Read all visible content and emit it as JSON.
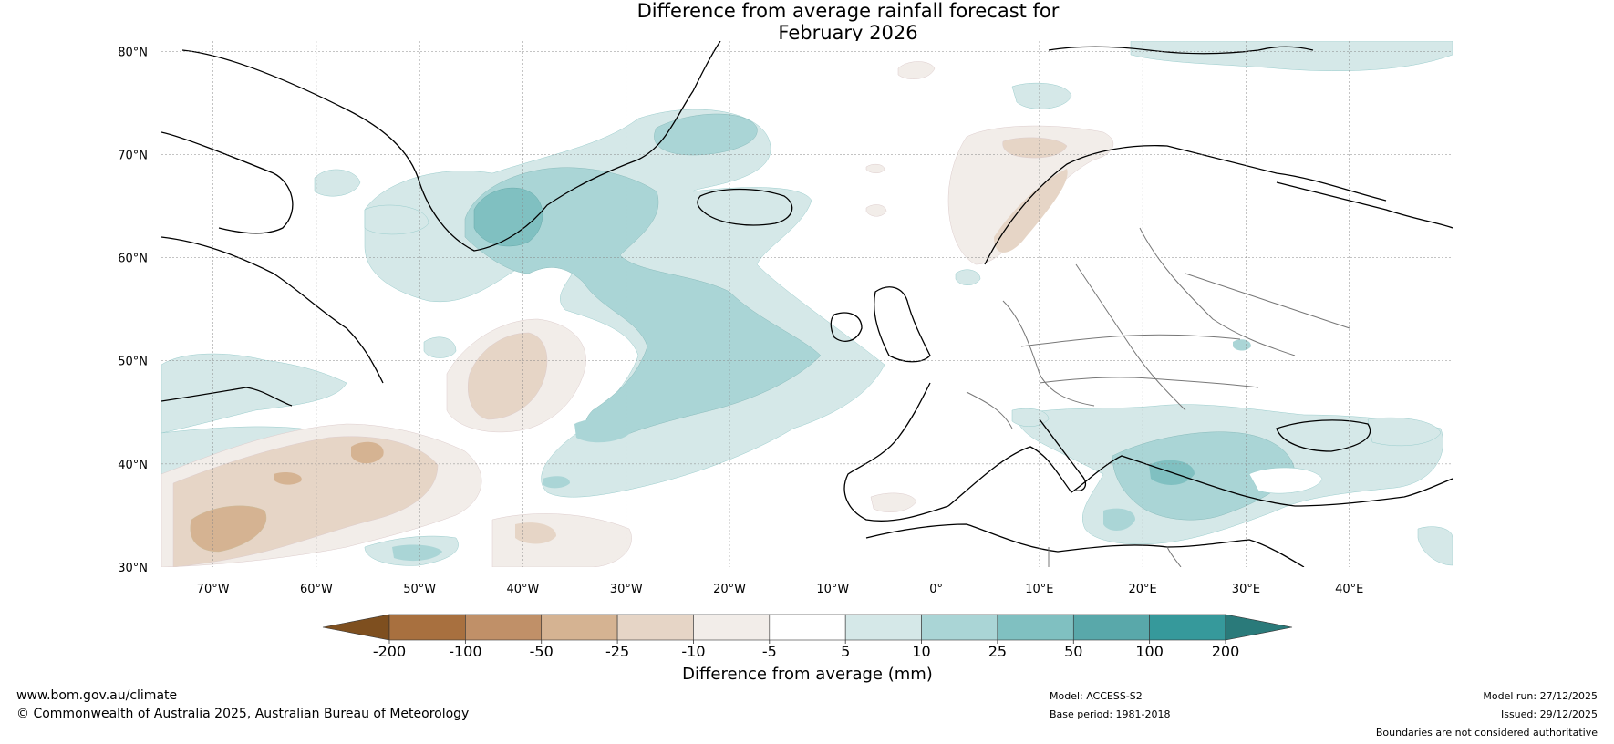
{
  "title": {
    "line1": "Difference from average rainfall forecast for",
    "line2": "February 2026"
  },
  "map": {
    "lat_labels": [
      "80°N",
      "70°N",
      "60°N",
      "50°N",
      "40°N",
      "30°N"
    ],
    "lon_labels": [
      "70°W",
      "60°W",
      "50°W",
      "40°W",
      "30°W",
      "20°W",
      "10°W",
      "0°",
      "10°E",
      "20°E",
      "30°E",
      "40°E"
    ]
  },
  "colorbar": {
    "title": "Difference from average (mm)",
    "ticks": [
      "-200",
      "-100",
      "-50",
      "-25",
      "-10",
      "-5",
      "5",
      "10",
      "25",
      "50",
      "100",
      "200"
    ],
    "colors": {
      "lt_-200": "#7e4f1f",
      "m200_m100": "#a8703f",
      "m100_m50": "#c09068",
      "m50_m25": "#d5b392",
      "m25_m10": "#e6d5c6",
      "m10_m5": "#f2ede9",
      "m5_p5": "#ffffff",
      "p5_p10": "#d5e8e8",
      "p10_p25": "#aad5d6",
      "p25_p50": "#80c0c1",
      "p50_p100": "#59a8aa",
      "p100_p200": "#36999b",
      "gt_200": "#2a7a7a"
    }
  },
  "footer": {
    "website": "www.bom.gov.au/climate",
    "copyright": "© Commonwealth of Australia 2025, Australian Bureau of Meteorology",
    "model": "Model: ACCESS-S2",
    "base_period": "Base period: 1981-2018",
    "model_run": "Model run: 27/12/2025",
    "issued": "Issued: 29/12/2025",
    "disclaimer": "Boundaries are not considered authoritative"
  }
}
